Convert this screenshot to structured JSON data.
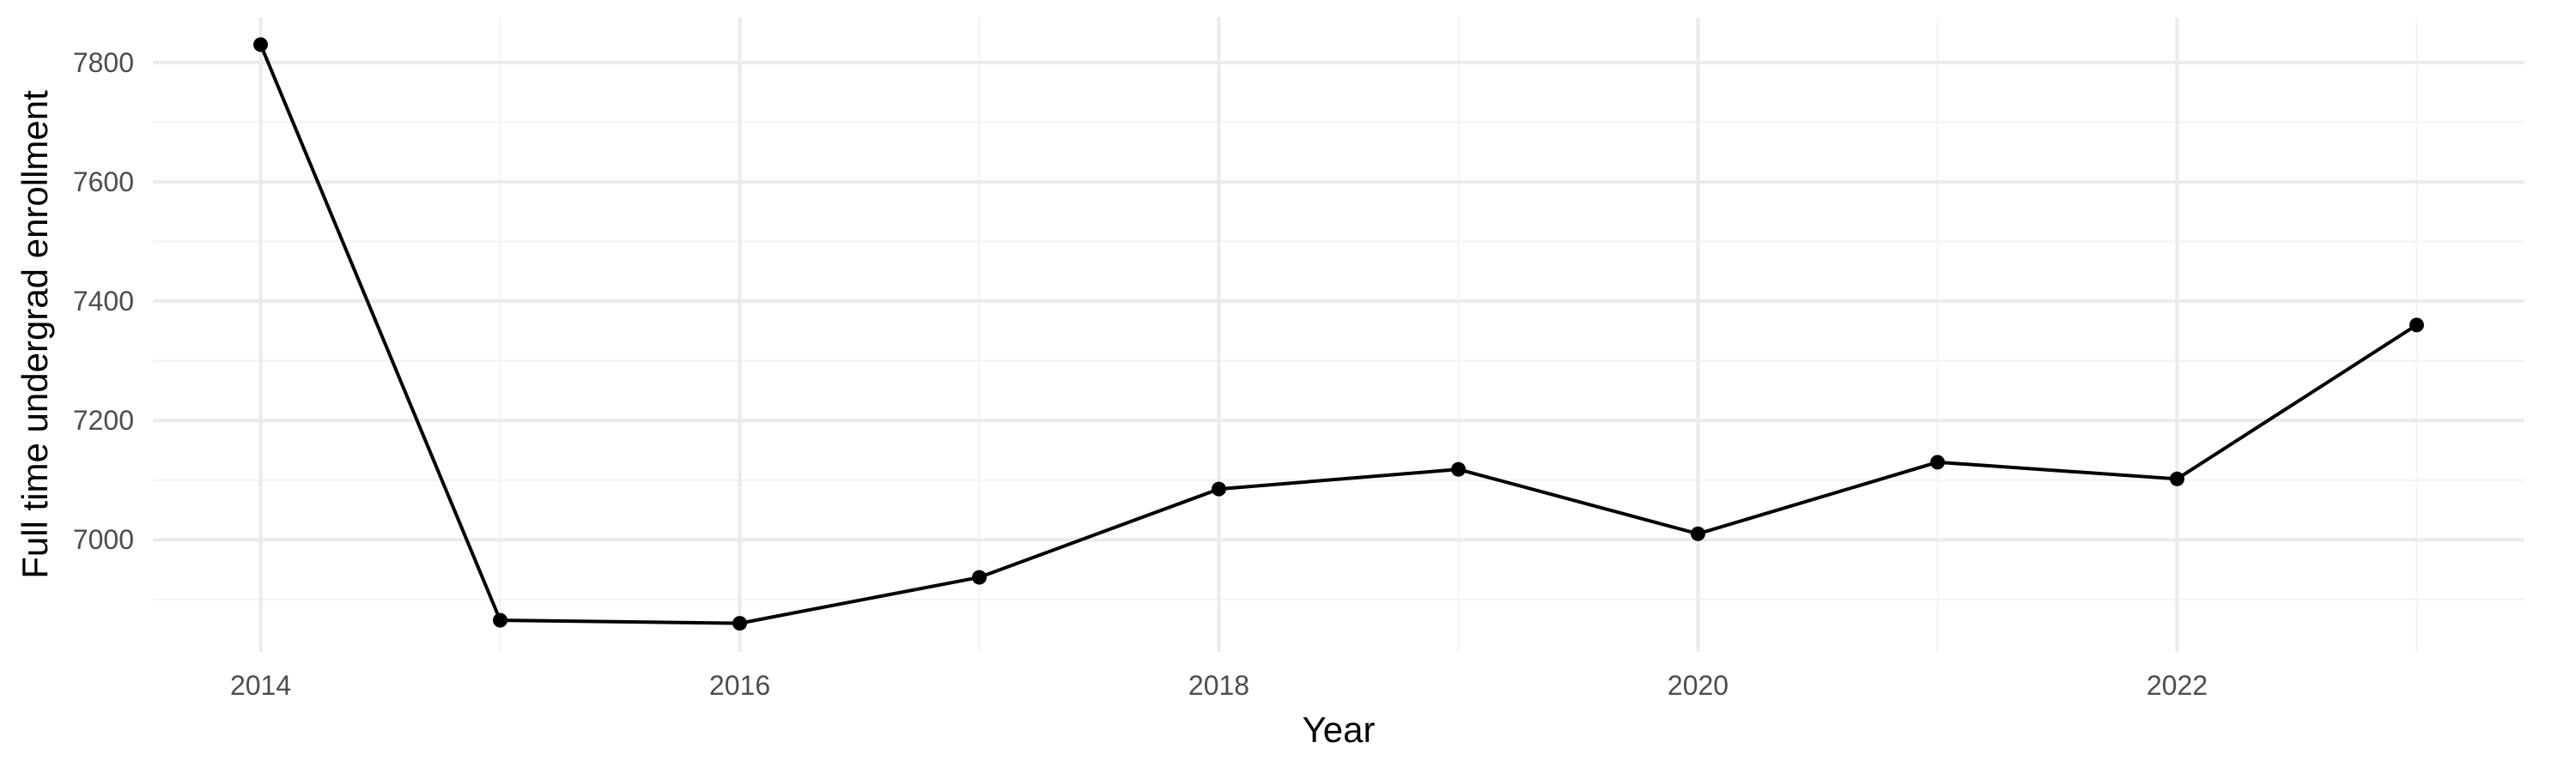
{
  "chart_data": {
    "type": "line",
    "title": "",
    "xlabel": "Year",
    "ylabel": "Full time undergrad enrollment",
    "x": [
      2014,
      2015,
      2016,
      2017,
      2018,
      2019,
      2020,
      2021,
      2022,
      2023
    ],
    "series": [
      {
        "values": [
          7830,
          6865,
          6860,
          6937,
          7085,
          7118,
          7010,
          7130,
          7102,
          7360
        ]
      }
    ],
    "xlim": [
      2013.55,
      2023.45
    ],
    "ylim": [
      6812,
      7876
    ],
    "x_ticks": [
      2014,
      2016,
      2018,
      2020,
      2022
    ],
    "x_minor_ticks": [
      2015,
      2017,
      2019,
      2021,
      2023
    ],
    "y_ticks": [
      7000,
      7200,
      7400,
      7600,
      7800
    ],
    "y_minor_ticks": [
      6900,
      7100,
      7300,
      7500,
      7700
    ],
    "x_tick_labels": [
      "2014",
      "2016",
      "2018",
      "2020",
      "2022"
    ],
    "y_tick_labels": [
      "7000",
      "7200",
      "7400",
      "7600",
      "7800"
    ],
    "grid": true,
    "legend": "none",
    "colors": {
      "line": "#000000",
      "point": "#000000",
      "grid_major": "#ebebeb",
      "grid_minor": "#f3f3f3",
      "tick_text": "#4d4d4d",
      "title_text": "#000000",
      "background": "#ffffff"
    }
  }
}
